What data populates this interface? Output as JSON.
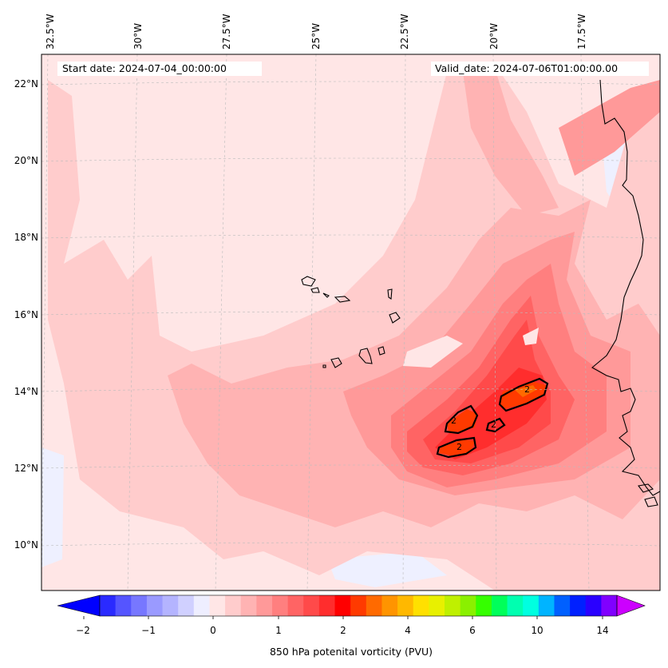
{
  "map": {
    "start_date": "Start date: 2024-07-04_00:00:00",
    "valid_date": "Valid_date: 2024-07-06T01:00:00.00",
    "lon_labels": [
      "32.5°W",
      "30°W",
      "27.5°W",
      "25°W",
      "22.5°W",
      "20°W",
      "17.5°W"
    ],
    "lat_labels": [
      "22°N",
      "20°N",
      "18°N",
      "16°N",
      "14°N",
      "12°N",
      "10°N"
    ],
    "contour_label": "2",
    "contour_labels": [
      "2",
      "2",
      "2",
      "2"
    ]
  },
  "colorbar": {
    "label": "850 hPa potenital vorticity (PVU)",
    "ticks": [
      "−2",
      "−1",
      "0",
      "1",
      "2",
      "4",
      "6",
      "10",
      "14"
    ],
    "colors": [
      "#0000ff",
      "#2a2aff",
      "#5555ff",
      "#7777ff",
      "#9a9aff",
      "#b4b4ff",
      "#d0d0ff",
      "#eeeeff",
      "#ffe6e6",
      "#ffcccc",
      "#ffb3b3",
      "#ff9999",
      "#ff7f7f",
      "#ff6464",
      "#ff4a4a",
      "#ff2d2d",
      "#ff0000",
      "#ff3a00",
      "#ff6a00",
      "#ff9400",
      "#ffb800",
      "#ffe000",
      "#e8f000",
      "#bff000",
      "#8af000",
      "#35ff00",
      "#00ff5a",
      "#00ffb0",
      "#00ffe0",
      "#00b4ff",
      "#0060ff",
      "#0020ff",
      "#2a00ff",
      "#8000ff",
      "#cc00ff"
    ]
  }
}
